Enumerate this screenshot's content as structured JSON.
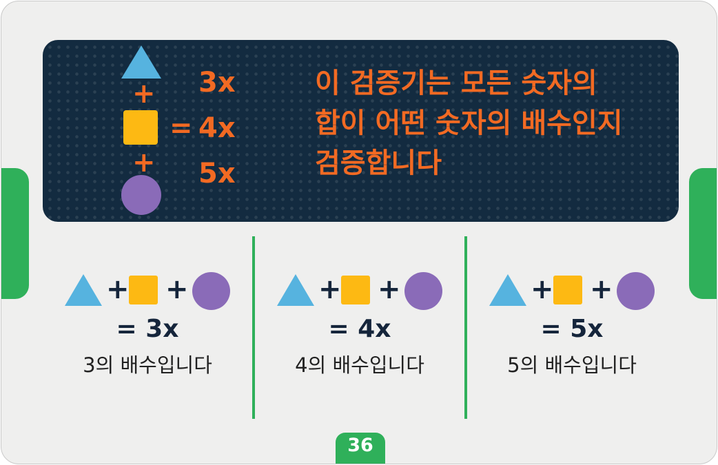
{
  "banner": {
    "plus_1": "+",
    "plus_2": "+",
    "equals": "=",
    "multiples": [
      "3x",
      "4x",
      "5x"
    ],
    "heading": "이 검증기는 모든 숫자의\n합이 어떤 숫자의 배수인지\n검증합니다"
  },
  "columns": [
    {
      "plus_a": "+",
      "plus_b": "+",
      "equation": "= 3x",
      "description": "3의 배수입니다"
    },
    {
      "plus_a": "+",
      "plus_b": "+",
      "equation": "= 4x",
      "description": "4의 배수입니다"
    },
    {
      "plus_a": "+",
      "plus_b": "+",
      "equation": "= 5x",
      "description": "5의 배수입니다"
    }
  ],
  "page_number": "36",
  "colors": {
    "accent_orange": "#f26a23",
    "banner_navy": "#132b40",
    "triangle_blue": "#56b3df",
    "square_yellow": "#fdb913",
    "circle_purple": "#8a6bb8",
    "tab_green": "#2fb05a"
  },
  "icons": [
    "triangle-icon",
    "square-icon",
    "circle-icon"
  ]
}
